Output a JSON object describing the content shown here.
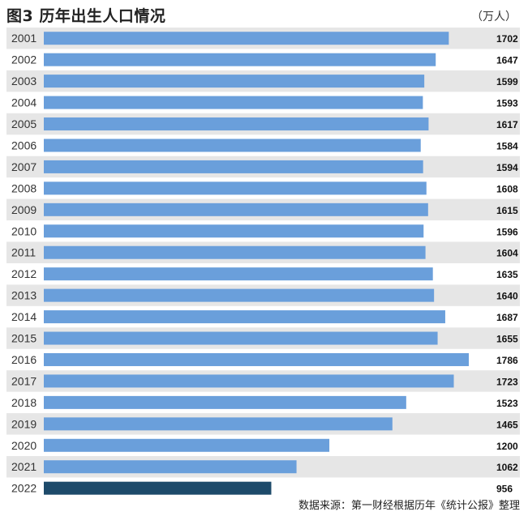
{
  "title": "图3  历年出生人口情况",
  "unit": "（万人）",
  "source": "数据来源：第一财经根据历年《统计公报》整理",
  "colors": {
    "bar": "#6a9fdb",
    "highlight_bar": "#1d4a6a",
    "row_band": "#e6e6e6"
  },
  "chart_data": {
    "type": "bar",
    "orientation": "horizontal",
    "title": "图3  历年出生人口情况",
    "unit": "（万人）",
    "categories": [
      "2001",
      "2002",
      "2003",
      "2004",
      "2005",
      "2006",
      "2007",
      "2008",
      "2009",
      "2010",
      "2011",
      "2012",
      "2013",
      "2014",
      "2015",
      "2016",
      "2017",
      "2018",
      "2019",
      "2020",
      "2021",
      "2022"
    ],
    "values": [
      1702,
      1647,
      1599,
      1593,
      1617,
      1584,
      1594,
      1608,
      1615,
      1596,
      1604,
      1635,
      1640,
      1687,
      1655,
      1786,
      1723,
      1523,
      1465,
      1200,
      1062,
      956
    ],
    "highlight": "2022",
    "xlim": [
      0,
      1786
    ],
    "grid": false,
    "legend": "none"
  }
}
